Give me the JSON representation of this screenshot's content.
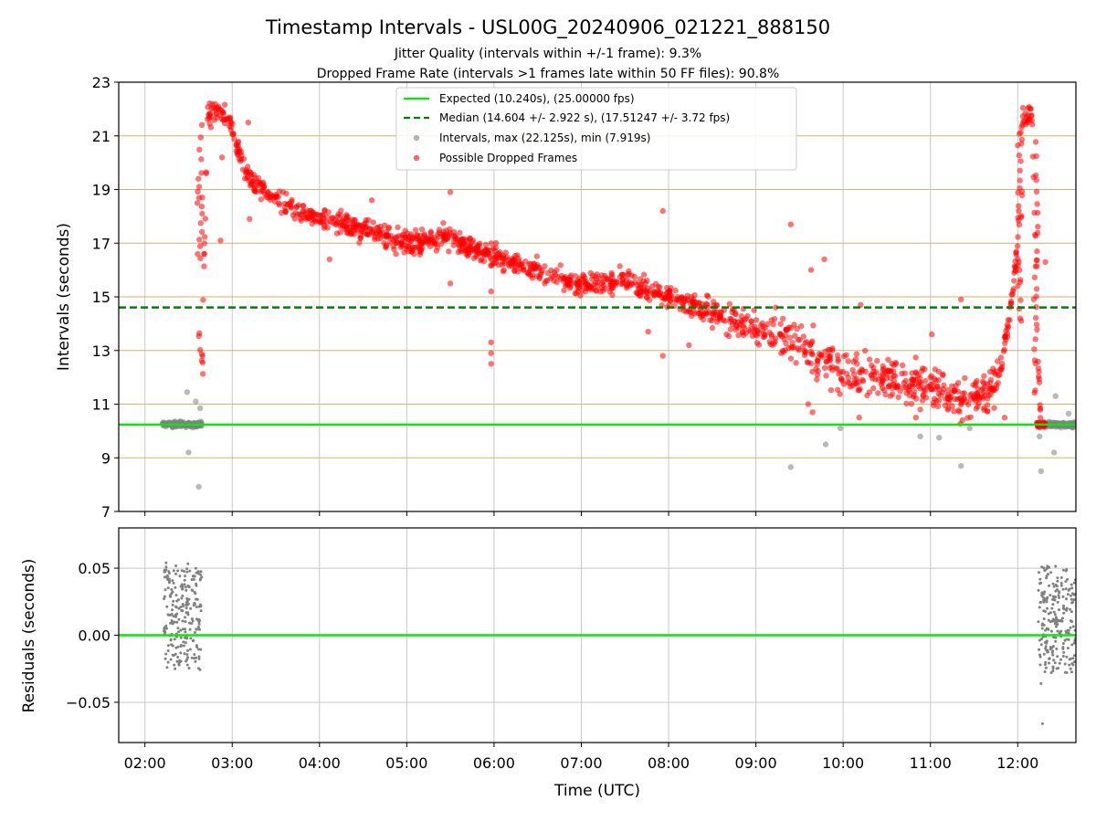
{
  "figure": {
    "title": "Timestamp Intervals - USL00G_20240906_021221_888150",
    "subtitle_1": "Jitter Quality (intervals within +/-1 frame): 9.3%",
    "subtitle_2": "Dropped Frame Rate (intervals >1 frames late within 50 FF files): 90.8%"
  },
  "colors": {
    "expected": "#00ee00",
    "median": "#008000",
    "intervals": "#808080",
    "dropped": "#ff0000",
    "hgrid": "#d2b46c",
    "vgrid": "#c8c8c8"
  },
  "chart_data": [
    {
      "type": "scatter",
      "title": "",
      "xlabel": "",
      "ylabel": "Intervals (seconds)",
      "x_range_utc": [
        "01:42",
        "12:40"
      ],
      "ylim": [
        7,
        23
      ],
      "y_ticks": [
        "7",
        "9",
        "11",
        "13",
        "15",
        "17",
        "19",
        "21",
        "23"
      ],
      "grid": "horizontal lines at y ticks (tan), vertical lines at x ticks (grey)",
      "legend_position": "upper-center",
      "reference_lines": [
        {
          "name": "Expected (10.240s), (25.00000 fps)",
          "y": 10.24,
          "style": "solid",
          "color": "#00ee00"
        },
        {
          "name": "Median (14.604 +/- 2.922 s), (17.51247 +/- 3.72 fps)",
          "y": 14.604,
          "style": "dashed",
          "color": "#008000"
        }
      ],
      "series": [
        {
          "name": "Intervals, max (22.125s), min (7.919s)",
          "color": "#808080",
          "segments": [
            {
              "x_start": "02:12",
              "x_end": "02:39",
              "y_mean": 10.24,
              "y_spread": 0.05
            },
            {
              "x_start": "12:14",
              "x_end": "12:40",
              "y_mean": 10.24,
              "y_spread": 0.05
            }
          ],
          "outliers": [
            {
              "x": "02:29",
              "y": 11.45
            },
            {
              "x": "02:35",
              "y": 11.1
            },
            {
              "x": "02:38",
              "y": 10.85
            },
            {
              "x": "02:30",
              "y": 9.2
            },
            {
              "x": "02:37",
              "y": 7.92
            },
            {
              "x": "09:24",
              "y": 8.65
            },
            {
              "x": "09:48",
              "y": 9.5
            },
            {
              "x": "09:58",
              "y": 10.1
            },
            {
              "x": "10:53",
              "y": 9.8
            },
            {
              "x": "11:06",
              "y": 9.75
            },
            {
              "x": "11:21",
              "y": 8.7
            },
            {
              "x": "11:27",
              "y": 10.1
            },
            {
              "x": "12:15",
              "y": 9.8
            },
            {
              "x": "12:16",
              "y": 8.5
            },
            {
              "x": "12:25",
              "y": 9.2
            },
            {
              "x": "12:26",
              "y": 11.3
            },
            {
              "x": "12:35",
              "y": 10.65
            }
          ]
        },
        {
          "name": "Possible Dropped Frames",
          "color": "#ff0000",
          "trend": [
            {
              "x": "02:39",
              "y": 12.5
            },
            {
              "x": "02:43",
              "y": 21.7
            },
            {
              "x": "02:48",
              "y": 21.9
            },
            {
              "x": "02:57",
              "y": 21.6
            },
            {
              "x": "03:03",
              "y": 20.7
            },
            {
              "x": "03:10",
              "y": 19.5
            },
            {
              "x": "03:30",
              "y": 18.6
            },
            {
              "x": "04:00",
              "y": 17.9
            },
            {
              "x": "04:30",
              "y": 17.5
            },
            {
              "x": "05:00",
              "y": 17.0
            },
            {
              "x": "05:30",
              "y": 17.2
            },
            {
              "x": "06:00",
              "y": 16.5
            },
            {
              "x": "06:30",
              "y": 16.0
            },
            {
              "x": "07:00",
              "y": 15.4
            },
            {
              "x": "07:30",
              "y": 15.6
            },
            {
              "x": "08:00",
              "y": 15.0
            },
            {
              "x": "08:30",
              "y": 14.4
            },
            {
              "x": "09:00",
              "y": 13.8
            },
            {
              "x": "09:30",
              "y": 13.2
            },
            {
              "x": "10:00",
              "y": 12.2
            },
            {
              "x": "10:30",
              "y": 12.0
            },
            {
              "x": "11:00",
              "y": 11.7
            },
            {
              "x": "11:20",
              "y": 11.2
            },
            {
              "x": "11:40",
              "y": 11.4
            },
            {
              "x": "11:48",
              "y": 12.3
            },
            {
              "x": "11:55",
              "y": 14.5
            },
            {
              "x": "12:00",
              "y": 17.0
            },
            {
              "x": "12:03",
              "y": 21.7
            },
            {
              "x": "12:10",
              "y": 21.7
            },
            {
              "x": "12:13",
              "y": 14.0
            },
            {
              "x": "12:16",
              "y": 10.25
            }
          ],
          "spikes": [
            {
              "x": "02:36",
              "x2": "02:40",
              "y_low": 12.0,
              "y_high": 21.5
            },
            {
              "x": "12:00",
              "x2": "12:03",
              "y_low": 14.0,
              "y_high": 21.5
            },
            {
              "x": "12:11",
              "x2": "12:14",
              "y_low": 11.0,
              "y_high": 21.0
            }
          ],
          "outliers": [
            {
              "x": "02:53",
              "y": 20.2
            },
            {
              "x": "02:52",
              "y": 17.1
            },
            {
              "x": "03:11",
              "y": 21.5
            },
            {
              "x": "03:12",
              "y": 17.9
            },
            {
              "x": "04:07",
              "y": 16.4
            },
            {
              "x": "04:36",
              "y": 18.6
            },
            {
              "x": "05:30",
              "y": 18.9
            },
            {
              "x": "05:30",
              "y": 15.5
            },
            {
              "x": "05:58",
              "y": 15.2
            },
            {
              "x": "05:58",
              "y": 13.3
            },
            {
              "x": "05:58",
              "y": 12.9
            },
            {
              "x": "05:58",
              "y": 12.5
            },
            {
              "x": "07:56",
              "y": 18.2
            },
            {
              "x": "07:56",
              "y": 12.8
            },
            {
              "x": "07:46",
              "y": 13.7
            },
            {
              "x": "08:14",
              "y": 13.2
            },
            {
              "x": "09:24",
              "y": 17.7
            },
            {
              "x": "09:38",
              "y": 16.0
            },
            {
              "x": "09:47",
              "y": 16.4
            },
            {
              "x": "09:36",
              "y": 11.0
            },
            {
              "x": "09:39",
              "y": 10.7
            },
            {
              "x": "10:12",
              "y": 14.7
            },
            {
              "x": "10:11",
              "y": 10.5
            },
            {
              "x": "10:50",
              "y": 10.5
            },
            {
              "x": "10:53",
              "y": 10.8
            },
            {
              "x": "11:01",
              "y": 13.6
            },
            {
              "x": "11:21",
              "y": 14.9
            },
            {
              "x": "11:22",
              "y": 10.4
            },
            {
              "x": "11:51",
              "y": 10.5
            },
            {
              "x": "12:19",
              "y": 16.3
            }
          ]
        }
      ],
      "legend": [
        "Expected (10.240s), (25.00000 fps)",
        "Median (14.604 +/- 2.922 s), (17.51247 +/- 3.72 fps)",
        "Intervals, max (22.125s), min (7.919s)",
        "Possible Dropped Frames"
      ]
    },
    {
      "type": "scatter",
      "title": "",
      "xlabel": "Time (UTC)",
      "ylabel": "Residuals (seconds)",
      "x_ticks": [
        "02:00",
        "03:00",
        "04:00",
        "05:00",
        "06:00",
        "07:00",
        "08:00",
        "09:00",
        "10:00",
        "11:00",
        "12:00"
      ],
      "x_range_utc": [
        "01:42",
        "12:40"
      ],
      "ylim": [
        -0.08,
        0.08
      ],
      "y_ticks": [
        "−0.05",
        "0.00",
        "0.05"
      ],
      "grid": "both axes, grey",
      "reference_lines": [
        {
          "y": 0.0,
          "style": "solid",
          "color": "#00ee00"
        }
      ],
      "series": [
        {
          "color": "#808080",
          "clusters": [
            {
              "x_start": "02:13",
              "x_end": "02:39",
              "y_min": -0.026,
              "y_max": 0.055
            },
            {
              "x_start": "12:14",
              "x_end": "12:40",
              "y_min": -0.028,
              "y_max": 0.052
            }
          ],
          "outliers": [
            {
              "x": "12:16",
              "y": -0.036
            },
            {
              "x": "12:17",
              "y": -0.066
            }
          ]
        }
      ]
    }
  ]
}
